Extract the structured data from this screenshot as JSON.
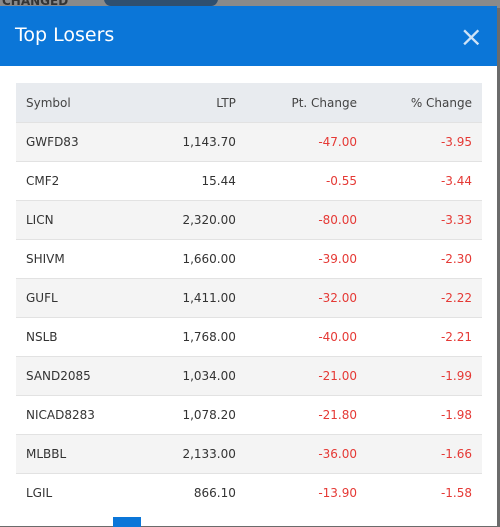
{
  "background": {
    "label": "CHANGED"
  },
  "modal": {
    "title": "Top Losers",
    "close": "×",
    "table": {
      "columns": [
        "Symbol",
        "LTP",
        "Pt. Change",
        "% Change"
      ],
      "rows": [
        [
          "GWFD83",
          "1,143.70",
          "-47.00",
          "-3.95"
        ],
        [
          "CMF2",
          "15.44",
          "-0.55",
          "-3.44"
        ],
        [
          "LICN",
          "2,320.00",
          "-80.00",
          "-3.33"
        ],
        [
          "SHIVM",
          "1,660.00",
          "-39.00",
          "-2.30"
        ],
        [
          "GUFL",
          "1,411.00",
          "-32.00",
          "-2.22"
        ],
        [
          "NSLB",
          "1,768.00",
          "-40.00",
          "-2.21"
        ],
        [
          "SAND2085",
          "1,034.00",
          "-21.00",
          "-1.99"
        ],
        [
          "NICAD8283",
          "1,078.20",
          "-21.80",
          "-1.98"
        ],
        [
          "MLBBL",
          "2,133.00",
          "-36.00",
          "-1.66"
        ],
        [
          "LGIL",
          "866.10",
          "-13.90",
          "-1.58"
        ]
      ]
    }
  }
}
